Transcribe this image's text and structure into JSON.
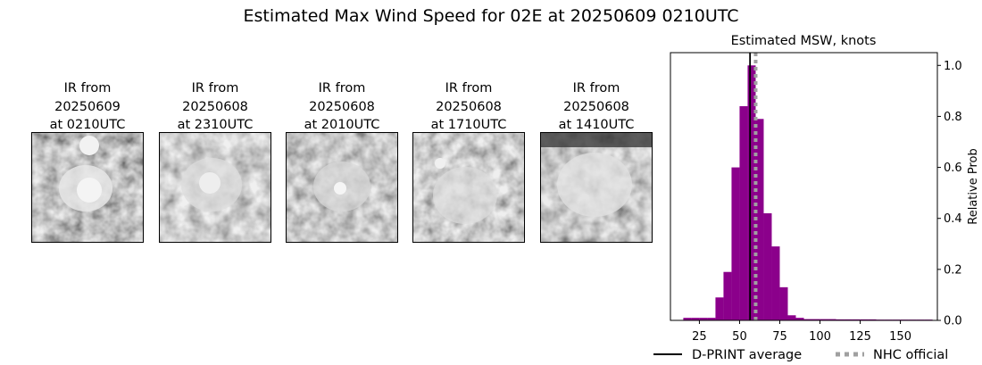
{
  "figure": {
    "title": "Estimated Max Wind Speed for 02E at 20250609 0210UTC"
  },
  "ir_panels": [
    {
      "line1": "IR from",
      "line2": "20250609",
      "line3": "at 0210UTC"
    },
    {
      "line1": "IR from",
      "line2": "20250608",
      "line3": "at 2310UTC"
    },
    {
      "line1": "IR from",
      "line2": "20250608",
      "line3": "at 2010UTC"
    },
    {
      "line1": "IR from",
      "line2": "20250608",
      "line3": "at 1710UTC"
    },
    {
      "line1": "IR from",
      "line2": "20250608",
      "line3": "at 1410UTC"
    }
  ],
  "chart_data": {
    "type": "bar",
    "title": "Estimated MSW, knots",
    "xlabel": "",
    "ylabel": "Relative Prob",
    "xlim": [
      7,
      173
    ],
    "ylim": [
      0,
      1.05
    ],
    "xticks": [
      25,
      50,
      75,
      100,
      125,
      150
    ],
    "yticks": [
      0.0,
      0.2,
      0.4,
      0.6,
      0.8,
      1.0
    ],
    "y_axis_side": "right",
    "bar_color": "#8b008b",
    "bin_width": 5,
    "bins": [
      {
        "x0": 15,
        "value": 0.01
      },
      {
        "x0": 20,
        "value": 0.01
      },
      {
        "x0": 25,
        "value": 0.01
      },
      {
        "x0": 30,
        "value": 0.01
      },
      {
        "x0": 35,
        "value": 0.09
      },
      {
        "x0": 40,
        "value": 0.19
      },
      {
        "x0": 45,
        "value": 0.6
      },
      {
        "x0": 50,
        "value": 0.84
      },
      {
        "x0": 55,
        "value": 1.0
      },
      {
        "x0": 60,
        "value": 0.79
      },
      {
        "x0": 65,
        "value": 0.42
      },
      {
        "x0": 70,
        "value": 0.29
      },
      {
        "x0": 75,
        "value": 0.13
      },
      {
        "x0": 80,
        "value": 0.02
      },
      {
        "x0": 85,
        "value": 0.01
      },
      {
        "x0": 90,
        "value": 0.005
      },
      {
        "x0": 95,
        "value": 0.005
      },
      {
        "x0": 100,
        "value": 0.005
      },
      {
        "x0": 105,
        "value": 0.005
      },
      {
        "x0": 110,
        "value": 0.004
      },
      {
        "x0": 115,
        "value": 0.004
      },
      {
        "x0": 120,
        "value": 0.004
      },
      {
        "x0": 125,
        "value": 0.004
      },
      {
        "x0": 130,
        "value": 0.004
      },
      {
        "x0": 135,
        "value": 0.003
      },
      {
        "x0": 140,
        "value": 0.003
      },
      {
        "x0": 145,
        "value": 0.003
      },
      {
        "x0": 150,
        "value": 0.003
      },
      {
        "x0": 155,
        "value": 0.003
      },
      {
        "x0": 160,
        "value": 0.003
      },
      {
        "x0": 165,
        "value": 0.003
      }
    ],
    "lines": [
      {
        "name": "D-PRINT average",
        "x": 56.5,
        "color": "#000000",
        "style": "solid"
      },
      {
        "name": "NHC official",
        "x": 60,
        "color": "#a0a0a0",
        "style": "dotted"
      }
    ],
    "legend_placement": "bottom"
  }
}
